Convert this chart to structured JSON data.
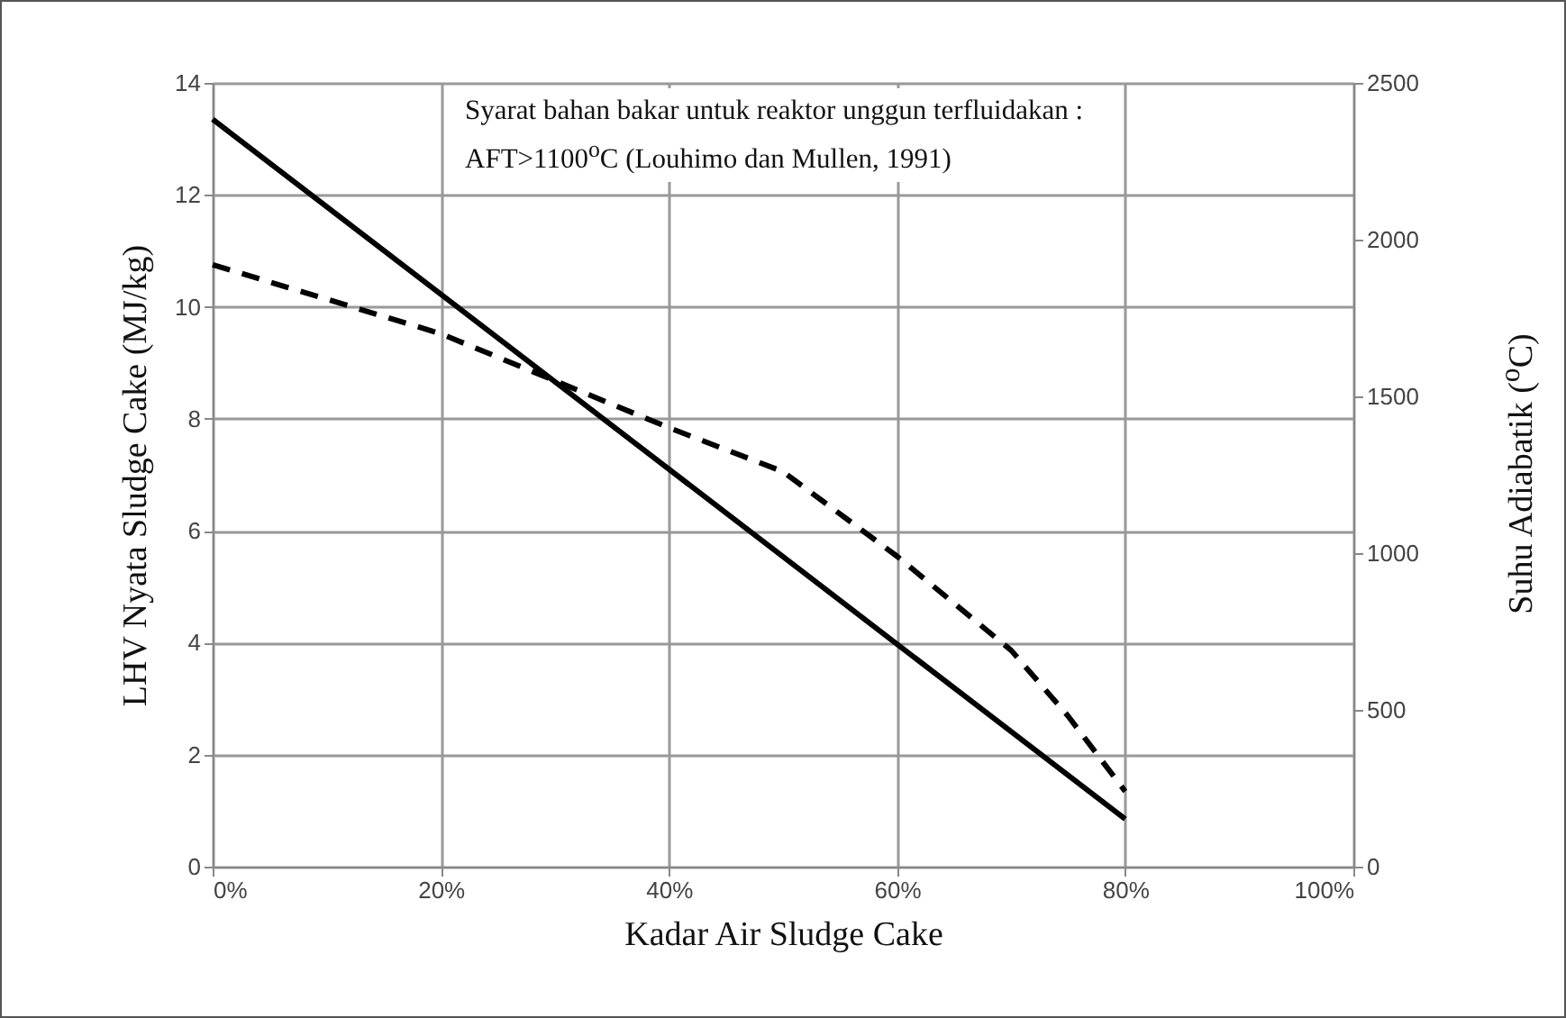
{
  "chart_data": {
    "type": "line",
    "xlabel": "Kadar Air Sludge Cake",
    "ylabel": "LHV Nyata Sludge Cake (MJ/kg)",
    "y2label": "Suhu Adiabatik ($^{o}$C)",
    "annotations": [
      "Syarat bahan bakar untuk reaktor unggun terfluidakan :\nAFT>1100$^{o}$C (Louhimo dan Mullen, 1991)"
    ],
    "x": [
      0,
      10,
      20,
      30,
      40,
      50,
      60,
      70,
      75,
      80
    ],
    "series": [
      {
        "color": "#000000",
        "line_style": "solid",
        "x": [
          0,
          80
        ],
        "values": [
          13.35,
          0.85
        ]
      },
      {
        "color": "#000000",
        "line_style": "dashed",
        "axis": "y2",
        "values": [
          1920,
          1810,
          1700,
          1550,
          1400,
          1260,
          990,
          690,
          480,
          240
        ]
      }
    ],
    "xlim": [
      0,
      100
    ],
    "xticks": [
      {
        "value": 0,
        "label": "0%"
      },
      {
        "value": 20,
        "label": "20%"
      },
      {
        "value": 40,
        "label": "40%"
      },
      {
        "value": 60,
        "label": "60%"
      },
      {
        "value": 80,
        "label": "80%"
      },
      {
        "value": 100,
        "label": "100%"
      }
    ],
    "ylim": [
      0,
      14
    ],
    "yticks": [
      0,
      2,
      4,
      6,
      8,
      10,
      12,
      14
    ],
    "y2lim": [
      0,
      2500
    ],
    "y2ticks": [
      0,
      500,
      1000,
      1500,
      2000,
      2500
    ],
    "grid": true,
    "marker": "none"
  }
}
